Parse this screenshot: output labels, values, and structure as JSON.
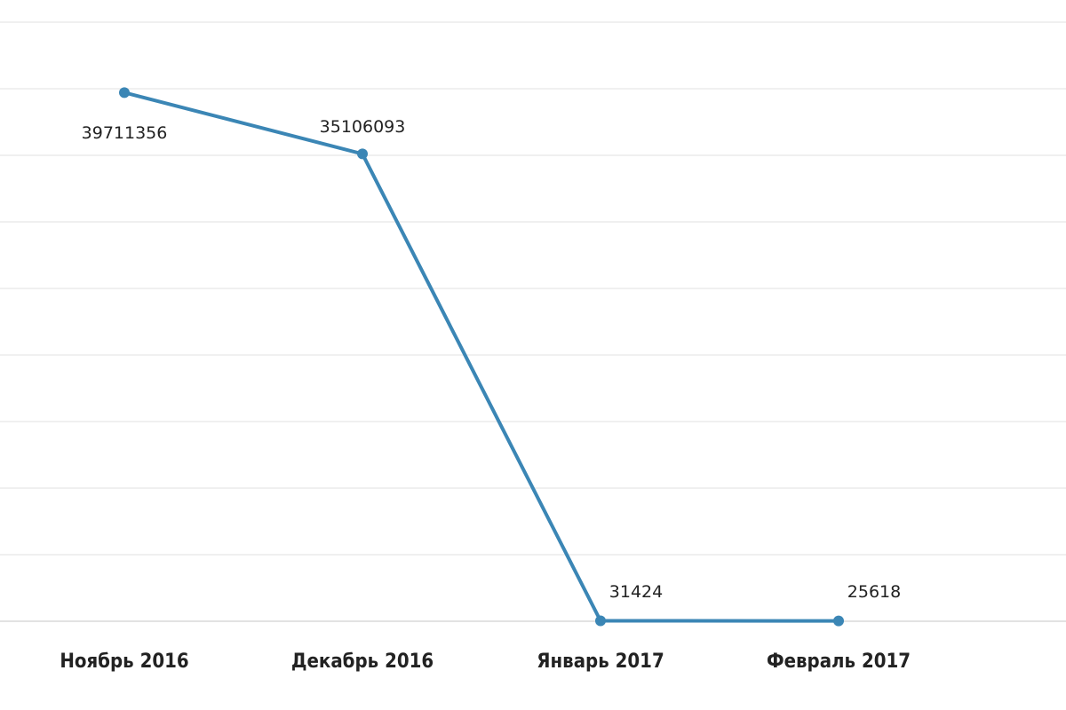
{
  "chart_data": {
    "type": "line",
    "categories": [
      "Ноябрь 2016",
      "Декабрь 2016",
      "Январь 2017",
      "Февраль 2017"
    ],
    "values": [
      39711356,
      35106093,
      31424,
      25618
    ],
    "color": "#3b86b5",
    "ylim": [
      0,
      45000000
    ],
    "yticks": [
      0,
      5000000,
      10000000,
      15000000,
      20000000,
      25000000,
      30000000,
      35000000,
      40000000,
      45000000
    ],
    "grid": true
  }
}
